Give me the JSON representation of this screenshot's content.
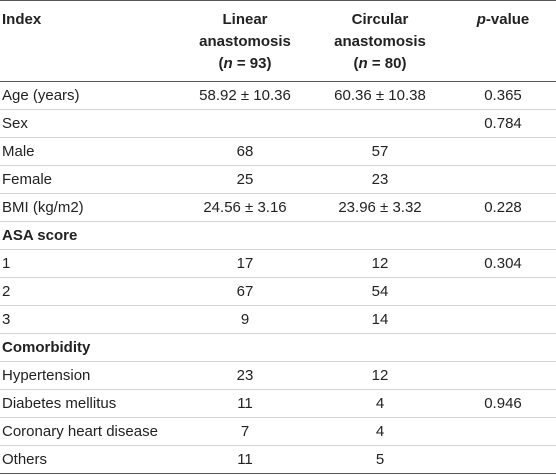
{
  "headers": {
    "index": "Index",
    "linear": {
      "line1": "Linear",
      "line2": "anastomosis",
      "n_open": "(",
      "n_var": "n",
      "n_rest": " = 93)"
    },
    "circular": {
      "line1": "Circular",
      "line2": "anastomosis",
      "n_open": "(",
      "n_var": "n",
      "n_rest": " = 80)"
    },
    "pvalue": {
      "p": "p",
      "rest": "-value"
    }
  },
  "rows": [
    {
      "label": "Age (years)",
      "linear": "58.92 ± 10.36",
      "circular": "60.36 ± 10.38",
      "p": "0.365",
      "section": false
    },
    {
      "label": "Sex",
      "linear": "",
      "circular": "",
      "p": "0.784",
      "section": false
    },
    {
      "label": "Male",
      "linear": "68",
      "circular": "57",
      "p": "",
      "section": false
    },
    {
      "label": "Female",
      "linear": "25",
      "circular": "23",
      "p": "",
      "section": false
    },
    {
      "label": "BMI (kg/m2)",
      "linear": "24.56 ± 3.16",
      "circular": "23.96 ± 3.32",
      "p": "0.228",
      "section": false
    },
    {
      "label": "ASA score",
      "linear": "",
      "circular": "",
      "p": "",
      "section": true
    },
    {
      "label": "1",
      "linear": "17",
      "circular": "12",
      "p": "0.304",
      "section": false
    },
    {
      "label": "2",
      "linear": "67",
      "circular": "54",
      "p": "",
      "section": false
    },
    {
      "label": "3",
      "linear": "9",
      "circular": "14",
      "p": "",
      "section": false
    },
    {
      "label": "Comorbidity",
      "linear": "",
      "circular": "",
      "p": "",
      "section": true
    },
    {
      "label": "Hypertension",
      "linear": "23",
      "circular": "12",
      "p": "",
      "section": false
    },
    {
      "label": "Diabetes mellitus",
      "linear": "11",
      "circular": "4",
      "p": "0.946",
      "section": false
    },
    {
      "label": "Coronary heart disease",
      "linear": "7",
      "circular": "4",
      "p": "",
      "section": false
    },
    {
      "label": "Others",
      "linear": "11",
      "circular": "5",
      "p": "",
      "section": false
    }
  ]
}
